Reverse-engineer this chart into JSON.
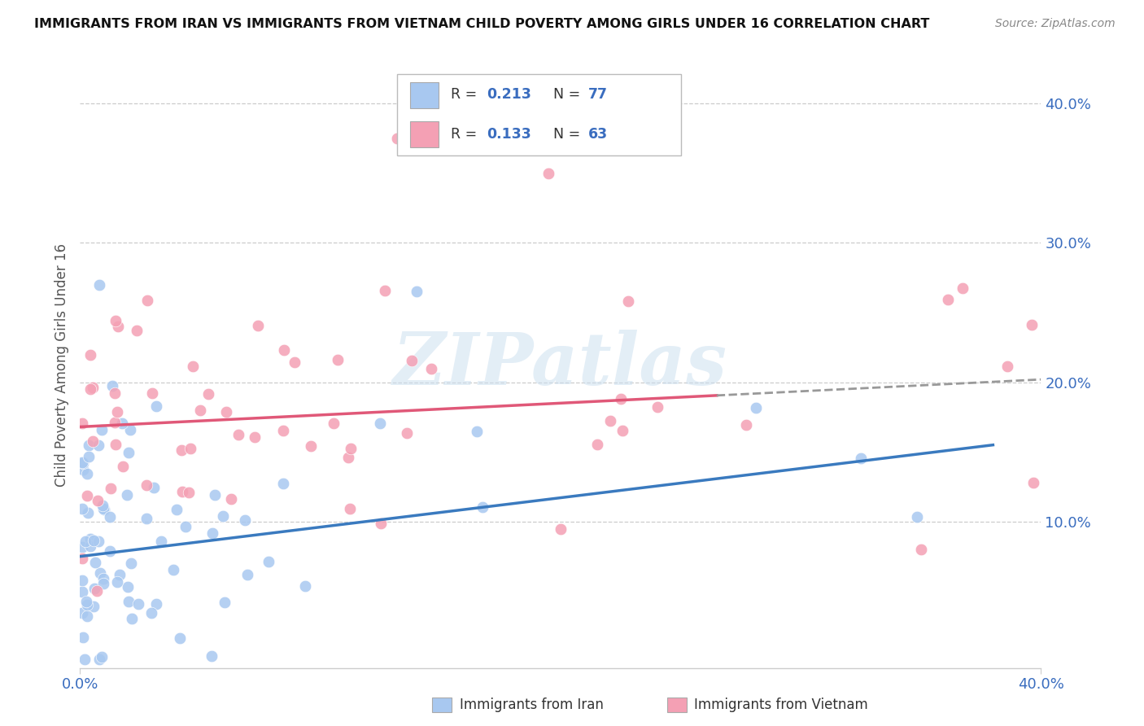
{
  "title": "IMMIGRANTS FROM IRAN VS IMMIGRANTS FROM VIETNAM CHILD POVERTY AMONG GIRLS UNDER 16 CORRELATION CHART",
  "source": "Source: ZipAtlas.com",
  "ylabel": "Child Poverty Among Girls Under 16",
  "xlim": [
    0.0,
    0.4
  ],
  "ylim": [
    -0.005,
    0.43
  ],
  "ytick_positions": [
    0.1,
    0.2,
    0.3,
    0.4
  ],
  "ytick_labels": [
    "10.0%",
    "20.0%",
    "30.0%",
    "40.0%"
  ],
  "xtick_positions": [
    0.0,
    0.4
  ],
  "xtick_labels": [
    "0.0%",
    "40.0%"
  ],
  "legend_iran_R": "0.213",
  "legend_iran_N": "77",
  "legend_vietnam_R": "0.133",
  "legend_vietnam_N": "63",
  "color_iran": "#a8c8f0",
  "color_vietnam": "#f4a0b4",
  "line_color_iran": "#3a7abf",
  "line_color_vietnam": "#e05878",
  "text_blue": "#3a6dbf",
  "grid_color": "#cccccc",
  "background": "#ffffff",
  "iran_line_x0": 0.0,
  "iran_line_y0": 0.075,
  "iran_line_x1": 0.38,
  "iran_line_y1": 0.155,
  "viet_line_x0": 0.0,
  "viet_line_y0": 0.168,
  "viet_line_x1": 0.4,
  "viet_line_y1": 0.202,
  "viet_dash_split": 0.265
}
